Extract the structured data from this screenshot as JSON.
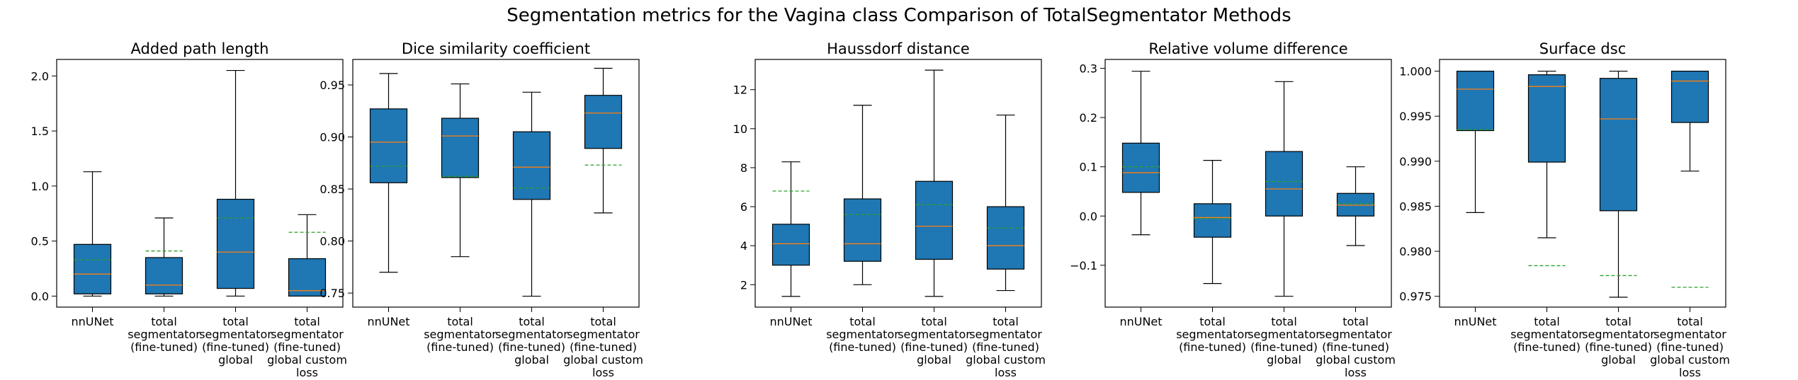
{
  "figure": {
    "title": "Segmentation metrics for the Vagina class Comparison of TotalSegmentator Methods"
  },
  "style": {
    "box_fill": "#1f77b4",
    "median_color": "#ff7f0e",
    "mean_color": "#2ca02c",
    "edge_color": "#000000"
  },
  "categories": [
    [
      "nnUNet"
    ],
    [
      "total",
      "segmentator",
      "(fine-tuned)"
    ],
    [
      "total",
      "segmentator",
      "(fine-tuned)",
      "global"
    ],
    [
      "total",
      "segmentator",
      "(fine-tuned)",
      "global custom",
      "loss"
    ]
  ],
  "chart_data": [
    {
      "type": "box",
      "title": "Added path length",
      "ylim": [
        -0.1,
        2.15
      ],
      "yticks": [
        0.0,
        0.5,
        1.0,
        1.5,
        2.0
      ],
      "ytick_labels": [
        "0.0",
        "0.5",
        "1.0",
        "1.5",
        "2.0"
      ],
      "boxes": [
        {
          "whisker_low": 0.0,
          "q1": 0.02,
          "median": 0.2,
          "q3": 0.47,
          "whisker_high": 1.13,
          "mean": 0.33
        },
        {
          "whisker_low": 0.0,
          "q1": 0.02,
          "median": 0.1,
          "q3": 0.35,
          "whisker_high": 0.71,
          "mean": 0.41
        },
        {
          "whisker_low": 0.0,
          "q1": 0.07,
          "median": 0.4,
          "q3": 0.88,
          "whisker_high": 2.05,
          "mean": 0.71
        },
        {
          "whisker_low": 0.0,
          "q1": 0.0,
          "median": 0.05,
          "q3": 0.34,
          "whisker_high": 0.74,
          "mean": 0.58
        }
      ]
    },
    {
      "type": "box",
      "title": "Dice similarity coefficient",
      "ylim": [
        0.7365,
        0.9745
      ],
      "yticks": [
        0.75,
        0.8,
        0.85,
        0.9,
        0.95
      ],
      "ytick_labels": [
        "0.75",
        "0.80",
        "0.85",
        "0.90",
        "0.95"
      ],
      "boxes": [
        {
          "whisker_low": 0.77,
          "q1": 0.856,
          "median": 0.895,
          "q3": 0.927,
          "whisker_high": 0.961,
          "mean": 0.872
        },
        {
          "whisker_low": 0.785,
          "q1": 0.861,
          "median": 0.901,
          "q3": 0.918,
          "whisker_high": 0.951,
          "mean": 0.862
        },
        {
          "whisker_low": 0.747,
          "q1": 0.84,
          "median": 0.871,
          "q3": 0.905,
          "whisker_high": 0.943,
          "mean": 0.851
        },
        {
          "whisker_low": 0.827,
          "q1": 0.889,
          "median": 0.923,
          "q3": 0.94,
          "whisker_high": 0.966,
          "mean": 0.873
        }
      ]
    },
    {
      "type": "box",
      "title": "Haussdorf distance",
      "ylim": [
        0.85,
        13.55
      ],
      "yticks": [
        2,
        4,
        6,
        8,
        10,
        12
      ],
      "ytick_labels": [
        "2",
        "4",
        "6",
        "8",
        "10",
        "12"
      ],
      "boxes": [
        {
          "whisker_low": 1.4,
          "q1": 3.0,
          "median": 4.1,
          "q3": 5.1,
          "whisker_high": 8.3,
          "mean": 6.8
        },
        {
          "whisker_low": 2.0,
          "q1": 3.2,
          "median": 4.1,
          "q3": 6.4,
          "whisker_high": 11.2,
          "mean": 5.6
        },
        {
          "whisker_low": 1.4,
          "q1": 3.3,
          "median": 5.0,
          "q3": 7.3,
          "whisker_high": 13.0,
          "mean": 6.1
        },
        {
          "whisker_low": 1.7,
          "q1": 2.8,
          "median": 4.0,
          "q3": 6.0,
          "whisker_high": 10.7,
          "mean": 4.9
        }
      ]
    },
    {
      "type": "box",
      "title": "Relative volume difference",
      "ylim": [
        -0.185,
        0.318
      ],
      "yticks": [
        -0.1,
        0.0,
        0.1,
        0.2,
        0.3
      ],
      "ytick_labels": [
        "−0.1",
        "0.0",
        "0.1",
        "0.2",
        "0.3"
      ],
      "boxes": [
        {
          "whisker_low": -0.038,
          "q1": 0.048,
          "median": 0.088,
          "q3": 0.148,
          "whisker_high": 0.294,
          "mean": 0.1
        },
        {
          "whisker_low": -0.137,
          "q1": -0.043,
          "median": -0.003,
          "q3": 0.025,
          "whisker_high": 0.113,
          "mean": -0.005
        },
        {
          "whisker_low": -0.163,
          "q1": 0.0,
          "median": 0.055,
          "q3": 0.131,
          "whisker_high": 0.273,
          "mean": 0.07
        },
        {
          "whisker_low": -0.06,
          "q1": 0.0,
          "median": 0.022,
          "q3": 0.046,
          "whisker_high": 0.1,
          "mean": 0.025
        }
      ]
    },
    {
      "type": "box",
      "title": "Surface dsc",
      "ylim": [
        0.9738,
        1.0013
      ],
      "yticks": [
        0.975,
        0.98,
        0.985,
        0.99,
        0.995,
        1.0
      ],
      "ytick_labels": [
        "0.975",
        "0.980",
        "0.985",
        "0.990",
        "0.995",
        "1.000"
      ],
      "boxes": [
        {
          "whisker_low": 0.9843,
          "q1": 0.9934,
          "median": 0.998,
          "q3": 1.0,
          "whisker_high": 1.0,
          "mean": 0.9935
        },
        {
          "whisker_low": 0.9815,
          "q1": 0.9899,
          "median": 0.9983,
          "q3": 0.9996,
          "whisker_high": 1.0,
          "mean": 0.9784
        },
        {
          "whisker_low": 0.9749,
          "q1": 0.9845,
          "median": 0.9947,
          "q3": 0.9992,
          "whisker_high": 1.0,
          "mean": 0.9773
        },
        {
          "whisker_low": 0.9889,
          "q1": 0.9943,
          "median": 0.9989,
          "q3": 1.0,
          "whisker_high": 1.0,
          "mean": 0.976
        }
      ]
    }
  ]
}
